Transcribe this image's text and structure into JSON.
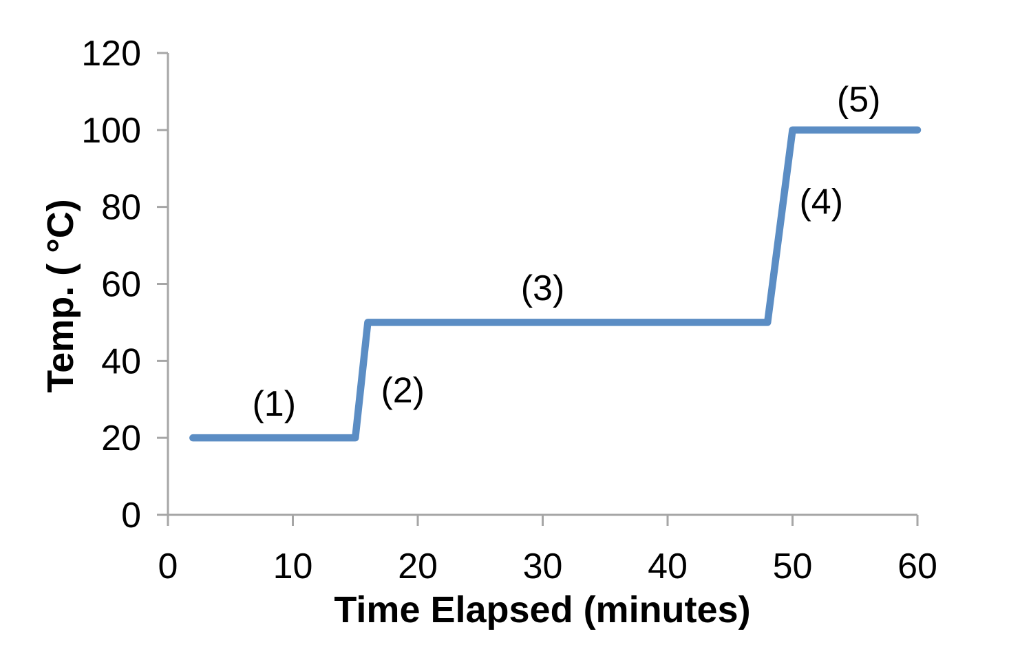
{
  "chart_data": {
    "type": "line",
    "title": "",
    "xlabel": "Time Elapsed (minutes)",
    "ylabel": "Temp. ( °C)",
    "xlim": [
      0,
      60
    ],
    "ylim": [
      0,
      120
    ],
    "x_ticks": [
      0,
      10,
      20,
      30,
      40,
      50,
      60
    ],
    "y_ticks": [
      0,
      20,
      40,
      60,
      80,
      100,
      120
    ],
    "grid": false,
    "legend": false,
    "series": [
      {
        "name": "temperature",
        "color": "#5B8DC4",
        "points": [
          [
            2,
            20
          ],
          [
            15,
            20
          ],
          [
            16,
            50
          ],
          [
            48,
            50
          ],
          [
            50,
            100
          ],
          [
            60,
            100
          ]
        ]
      }
    ],
    "annotations": [
      {
        "label": "(1)",
        "x": 8.5,
        "y": 29
      },
      {
        "label": "(2)",
        "x": 18.8,
        "y": 32.5
      },
      {
        "label": "(3)",
        "x": 30,
        "y": 59
      },
      {
        "label": "(4)",
        "x": 52.3,
        "y": 81.5
      },
      {
        "label": "(5)",
        "x": 55.3,
        "y": 108
      }
    ]
  },
  "colors": {
    "line": "#5B8DC4",
    "axis": "#A6A6A6",
    "text": "#000000",
    "background": "#FFFFFF"
  }
}
